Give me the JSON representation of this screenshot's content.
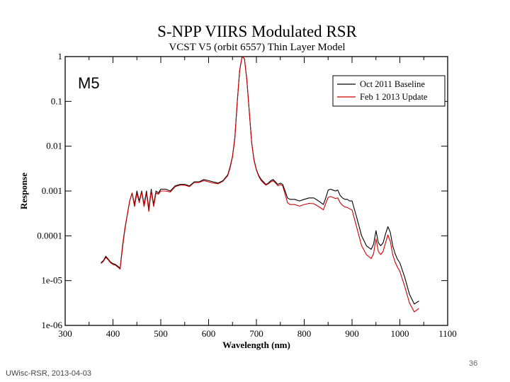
{
  "chart_data": {
    "type": "line",
    "title": "S-NPP VIIRS Modulated RSR",
    "subtitle": "VCST V5 (orbit 6557) Thin Layer Model",
    "panel_label": "M5",
    "xlabel": "Wavelength (nm)",
    "ylabel": "Response",
    "xlim": [
      300,
      1100
    ],
    "ylim": [
      1e-06,
      1
    ],
    "yscale": "log",
    "x_ticks": [
      "300",
      "400",
      "500",
      "600",
      "700",
      "800",
      "900",
      "1000",
      "1100"
    ],
    "y_ticks": [
      "1e-06",
      "1e-05",
      "0.0001",
      "0.001",
      "0.01",
      "0.1",
      "1"
    ],
    "legend_position": "top-right",
    "series": [
      {
        "name": "Oct 2011 Baseline",
        "color": "#000000",
        "x": [
          375,
          380,
          385,
          390,
          395,
          400,
          405,
          410,
          415,
          420,
          425,
          430,
          435,
          440,
          445,
          450,
          455,
          460,
          465,
          470,
          475,
          480,
          485,
          490,
          495,
          500,
          510,
          520,
          530,
          540,
          550,
          560,
          570,
          580,
          590,
          600,
          610,
          620,
          630,
          640,
          645,
          650,
          655,
          660,
          665,
          670,
          675,
          680,
          685,
          690,
          695,
          700,
          705,
          710,
          715,
          720,
          725,
          730,
          735,
          740,
          745,
          750,
          755,
          760,
          765,
          770,
          780,
          790,
          800,
          810,
          820,
          830,
          840,
          845,
          850,
          855,
          860,
          865,
          870,
          875,
          880,
          885,
          890,
          895,
          900,
          910,
          920,
          930,
          940,
          945,
          950,
          955,
          960,
          965,
          970,
          975,
          980,
          985,
          990,
          995,
          1000,
          1010,
          1020,
          1030,
          1040
        ],
        "y": [
          2.5e-05,
          2.8e-05,
          3.5e-05,
          3e-05,
          2.6e-05,
          2.4e-05,
          2.3e-05,
          2.1e-05,
          1.9e-05,
          6e-05,
          0.00015,
          0.0003,
          0.0006,
          0.0009,
          0.0005,
          0.001,
          0.0006,
          0.001,
          0.0005,
          0.001,
          0.0004,
          0.0011,
          0.0005,
          0.001,
          0.0009,
          0.0011,
          0.0011,
          0.001,
          0.0013,
          0.0014,
          0.0014,
          0.0013,
          0.0016,
          0.0016,
          0.0018,
          0.0017,
          0.0016,
          0.0015,
          0.0017,
          0.0023,
          0.0035,
          0.006,
          0.016,
          0.1,
          0.5,
          1.0,
          0.9,
          0.3,
          0.06,
          0.012,
          0.005,
          0.003,
          0.0022,
          0.0018,
          0.0016,
          0.0014,
          0.0015,
          0.0017,
          0.0018,
          0.0016,
          0.0014,
          0.0015,
          0.0014,
          0.001,
          0.0007,
          0.00065,
          0.00065,
          0.0006,
          0.00065,
          0.0007,
          0.0007,
          0.0006,
          0.0005,
          0.0007,
          0.00105,
          0.0011,
          0.00105,
          0.001,
          0.00105,
          0.0008,
          0.0007,
          0.00065,
          0.00065,
          0.0006,
          0.0006,
          0.00025,
          0.0001,
          6e-05,
          5e-05,
          6.5e-05,
          0.00013,
          7e-05,
          6e-05,
          7e-05,
          0.00011,
          0.00016,
          0.00012,
          6e-05,
          4e-05,
          3e-05,
          2.5e-05,
          1.2e-05,
          5e-06,
          3e-06,
          3.5e-06
        ]
      },
      {
        "name": "Feb 1 2013 Update",
        "color": "#cc0000",
        "x": [
          375,
          380,
          385,
          390,
          395,
          400,
          405,
          410,
          415,
          420,
          425,
          430,
          435,
          440,
          445,
          450,
          455,
          460,
          465,
          470,
          475,
          480,
          485,
          490,
          495,
          500,
          510,
          520,
          530,
          540,
          550,
          560,
          570,
          580,
          590,
          600,
          610,
          620,
          630,
          640,
          645,
          650,
          655,
          660,
          665,
          670,
          675,
          680,
          685,
          690,
          695,
          700,
          705,
          710,
          715,
          720,
          725,
          730,
          735,
          740,
          745,
          750,
          755,
          760,
          765,
          770,
          780,
          790,
          800,
          810,
          820,
          830,
          840,
          845,
          850,
          855,
          860,
          865,
          870,
          875,
          880,
          885,
          890,
          895,
          900,
          910,
          920,
          930,
          940,
          945,
          950,
          955,
          960,
          965,
          970,
          975,
          980,
          985,
          990,
          995,
          1000,
          1010,
          1020,
          1030,
          1040
        ],
        "y": [
          2.4e-05,
          2.7e-05,
          3.3e-05,
          2.9e-05,
          2.5e-05,
          2.3e-05,
          2.2e-05,
          2e-05,
          1.8e-05,
          5.5e-05,
          0.00014,
          0.0003,
          0.0006,
          0.0009,
          0.00045,
          0.0009,
          0.00055,
          0.00095,
          0.00045,
          0.0009,
          0.00035,
          0.001,
          0.00045,
          0.0009,
          0.00085,
          0.001,
          0.001,
          0.00095,
          0.00125,
          0.00135,
          0.00135,
          0.00125,
          0.00155,
          0.00155,
          0.0017,
          0.0016,
          0.0015,
          0.00145,
          0.00165,
          0.0022,
          0.0033,
          0.0058,
          0.015,
          0.1,
          0.5,
          1.0,
          0.9,
          0.3,
          0.06,
          0.012,
          0.0048,
          0.0029,
          0.0021,
          0.0017,
          0.0015,
          0.00135,
          0.00145,
          0.0016,
          0.0017,
          0.0015,
          0.0013,
          0.0014,
          0.0013,
          0.00085,
          0.00055,
          0.0005,
          0.0005,
          0.00046,
          0.0005,
          0.00053,
          0.00052,
          0.00045,
          0.00038,
          0.00053,
          0.00072,
          0.00075,
          0.00072,
          0.00068,
          0.0007,
          0.00055,
          0.00048,
          0.00044,
          0.00043,
          0.0004,
          0.00038,
          0.00015,
          6e-05,
          3.8e-05,
          3.1e-05,
          4e-05,
          8.5e-05,
          4.5e-05,
          3.8e-05,
          4.5e-05,
          7e-05,
          0.000105,
          7.5e-05,
          3.8e-05,
          2.6e-05,
          2e-05,
          1.6e-05,
          7.5e-06,
          3.2e-06,
          2e-06,
          2.4e-06
        ]
      }
    ]
  },
  "footer": {
    "left_text": "UWisc-RSR, 2013-04-03",
    "page_number": "36"
  },
  "colors": {
    "axis": "#000000",
    "background": "#ffffff",
    "footer_text": "#444444"
  }
}
